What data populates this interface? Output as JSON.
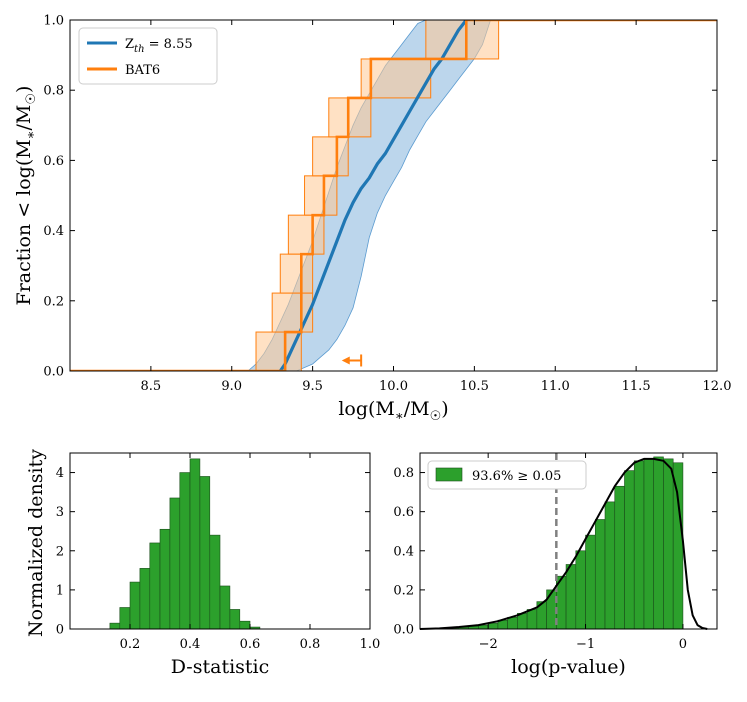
{
  "colors": {
    "model": "#1f77b4",
    "model_band": "#a6c8e6",
    "model_band_edge": "#5b9bd0",
    "bat6": "#ff7f0e",
    "bat6_band": "#ffc994",
    "hist_green": "#2ca02c",
    "hist_edge": "#1a4d1a",
    "kde": "#000000",
    "threshold": "#808080"
  },
  "chart_data": [
    {
      "id": "cdf",
      "type": "line",
      "xlabel": "log(M*/M☉)",
      "ylabel": "Fraction < log(M*/M☉)",
      "xlim": [
        8.0,
        12.0
      ],
      "ylim": [
        0.0,
        1.0
      ],
      "xticks": [
        8.5,
        9.0,
        9.5,
        10.0,
        10.5,
        11.0,
        11.5,
        12.0
      ],
      "xtick_labels": [
        "8.5",
        "9.0",
        "9.5",
        "10.0",
        "10.5",
        "11.0",
        "11.5",
        "12.0"
      ],
      "yticks": [
        0.0,
        0.2,
        0.4,
        0.6,
        0.8,
        1.0
      ],
      "ytick_labels": [
        "0.0",
        "0.2",
        "0.4",
        "0.6",
        "0.8",
        "1.0"
      ],
      "legend": {
        "position": "top-left",
        "entries": [
          {
            "label_base": "Z",
            "label_sub": "th",
            "label_rest": " = 8.55",
            "series": "model"
          },
          {
            "label": "BAT6",
            "series": "bat6"
          }
        ]
      },
      "model_median": {
        "x": [
          9.3,
          9.33,
          9.36,
          9.4,
          9.45,
          9.5,
          9.55,
          9.6,
          9.65,
          9.7,
          9.75,
          9.8,
          9.85,
          9.9,
          9.95,
          10.0,
          10.05,
          10.1,
          10.15,
          10.2,
          10.25,
          10.3,
          10.35,
          10.4,
          10.45
        ],
        "y": [
          0.0,
          0.02,
          0.05,
          0.09,
          0.14,
          0.19,
          0.25,
          0.31,
          0.37,
          0.43,
          0.48,
          0.52,
          0.55,
          0.59,
          0.62,
          0.66,
          0.7,
          0.74,
          0.78,
          0.82,
          0.86,
          0.89,
          0.93,
          0.97,
          1.0
        ]
      },
      "model_band": {
        "x": [
          9.1,
          9.15,
          9.2,
          9.25,
          9.3,
          9.35,
          9.4,
          9.45,
          9.5,
          9.55,
          9.6,
          9.65,
          9.7,
          9.75,
          9.8,
          9.85,
          9.9,
          9.95,
          10.0,
          10.05,
          10.1,
          10.15,
          10.2,
          10.25,
          10.3,
          10.35,
          10.4,
          10.45,
          10.5,
          10.55,
          10.6
        ],
        "lower": [
          0.0,
          0.0,
          0.0,
          0.0,
          0.0,
          0.0,
          0.0,
          0.01,
          0.02,
          0.04,
          0.06,
          0.09,
          0.13,
          0.18,
          0.27,
          0.38,
          0.45,
          0.5,
          0.54,
          0.58,
          0.63,
          0.67,
          0.71,
          0.74,
          0.77,
          0.8,
          0.83,
          0.86,
          0.89,
          0.93,
          1.0
        ],
        "upper": [
          0.0,
          0.02,
          0.05,
          0.09,
          0.14,
          0.19,
          0.25,
          0.31,
          0.37,
          0.44,
          0.51,
          0.58,
          0.64,
          0.7,
          0.75,
          0.79,
          0.83,
          0.87,
          0.9,
          0.93,
          0.96,
          0.99,
          1.0,
          1.0,
          1.0,
          1.0,
          1.0,
          1.0,
          1.0,
          1.0,
          1.0
        ]
      },
      "bat6_step": {
        "x": [
          8.0,
          9.33,
          9.33,
          9.43,
          9.43,
          9.5,
          9.5,
          9.57,
          9.57,
          9.65,
          9.65,
          9.72,
          9.72,
          9.86,
          9.86,
          10.05,
          10.05,
          10.23,
          10.23,
          10.45,
          10.45,
          12.0
        ],
        "y": [
          0.0,
          0.0,
          0.111,
          0.111,
          0.333,
          0.333,
          0.444,
          0.444,
          0.556,
          0.556,
          0.667,
          0.667,
          0.778,
          0.778,
          0.889,
          0.889,
          0.889,
          0.889,
          0.889,
          0.889,
          1.0,
          1.0
        ]
      },
      "bat6_boxes": [
        {
          "x0": 9.15,
          "x1": 9.43,
          "y0": 0.0,
          "y1": 0.111
        },
        {
          "x0": 9.25,
          "x1": 9.5,
          "y0": 0.111,
          "y1": 0.222
        },
        {
          "x0": 9.3,
          "x1": 9.5,
          "y0": 0.222,
          "y1": 0.333
        },
        {
          "x0": 9.35,
          "x1": 9.57,
          "y0": 0.333,
          "y1": 0.444
        },
        {
          "x0": 9.45,
          "x1": 9.65,
          "y0": 0.444,
          "y1": 0.556
        },
        {
          "x0": 9.5,
          "x1": 9.72,
          "y0": 0.556,
          "y1": 0.667
        },
        {
          "x0": 9.6,
          "x1": 9.86,
          "y0": 0.667,
          "y1": 0.778
        },
        {
          "x0": 9.8,
          "x1": 10.23,
          "y0": 0.778,
          "y1": 0.889
        },
        {
          "x0": 10.2,
          "x1": 10.65,
          "y0": 0.889,
          "y1": 1.0
        }
      ],
      "upper_limit_arrow": {
        "x_tip": 9.68,
        "x_base": 9.8,
        "y": 0.03
      }
    },
    {
      "id": "dstat",
      "type": "bar",
      "xlabel": "D-statistic",
      "ylabel": "Normalized density",
      "xlim": [
        0.0,
        1.0
      ],
      "ylim": [
        0.0,
        4.5
      ],
      "xticks": [
        0.2,
        0.4,
        0.6,
        0.8,
        1.0
      ],
      "xtick_labels": [
        "0.2",
        "0.4",
        "0.6",
        "0.8",
        "1.0"
      ],
      "yticks": [
        0,
        1,
        2,
        3,
        4
      ],
      "ytick_labels": [
        "0",
        "1",
        "2",
        "3",
        "4"
      ],
      "bin_edges": [
        0.133,
        0.166,
        0.2,
        0.233,
        0.266,
        0.3,
        0.333,
        0.366,
        0.4,
        0.433,
        0.466,
        0.5,
        0.533,
        0.566,
        0.6,
        0.633
      ],
      "values": [
        0.15,
        0.55,
        1.2,
        1.55,
        2.2,
        2.55,
        3.35,
        4.0,
        4.35,
        3.9,
        2.4,
        1.1,
        0.5,
        0.2,
        0.05
      ]
    },
    {
      "id": "pvalue",
      "type": "bar",
      "xlabel": "log(p-value)",
      "ylabel": "",
      "xlim": [
        -2.7,
        0.35
      ],
      "ylim": [
        0.0,
        0.9
      ],
      "xticks": [
        -2,
        -1,
        0
      ],
      "xtick_labels": [
        "−2",
        "−1",
        "0"
      ],
      "yticks": [
        0.0,
        0.2,
        0.4,
        0.6,
        0.8
      ],
      "ytick_labels": [
        "0.0",
        "0.2",
        "0.4",
        "0.6",
        "0.8"
      ],
      "legend": {
        "position": "top-left",
        "label": "93.6% ≥ 0.05"
      },
      "threshold_x": -1.3,
      "bin_edges": [
        -2.6,
        -2.5,
        -2.4,
        -2.3,
        -2.2,
        -2.1,
        -2.0,
        -1.9,
        -1.8,
        -1.7,
        -1.6,
        -1.5,
        -1.4,
        -1.3,
        -1.2,
        -1.1,
        -1.0,
        -0.9,
        -0.8,
        -0.7,
        -0.6,
        -0.5,
        -0.4,
        -0.3,
        -0.2,
        -0.1,
        0.0
      ],
      "values": [
        0.0,
        0.0,
        0.005,
        0.01,
        0.015,
        0.02,
        0.03,
        0.045,
        0.06,
        0.08,
        0.1,
        0.14,
        0.2,
        0.27,
        0.33,
        0.4,
        0.48,
        0.56,
        0.65,
        0.73,
        0.81,
        0.86,
        0.87,
        0.88,
        0.87,
        0.85
      ],
      "kde": {
        "x": [
          -2.7,
          -2.5,
          -2.3,
          -2.1,
          -1.9,
          -1.7,
          -1.5,
          -1.4,
          -1.3,
          -1.2,
          -1.1,
          -1.0,
          -0.9,
          -0.8,
          -0.7,
          -0.6,
          -0.5,
          -0.4,
          -0.3,
          -0.2,
          -0.12,
          -0.06,
          0.0,
          0.05,
          0.1,
          0.15,
          0.2,
          0.25
        ],
        "y": [
          0.0,
          0.003,
          0.01,
          0.02,
          0.04,
          0.07,
          0.11,
          0.15,
          0.22,
          0.29,
          0.37,
          0.46,
          0.55,
          0.64,
          0.73,
          0.8,
          0.85,
          0.87,
          0.87,
          0.86,
          0.82,
          0.7,
          0.45,
          0.2,
          0.07,
          0.02,
          0.005,
          0.0
        ]
      }
    }
  ]
}
